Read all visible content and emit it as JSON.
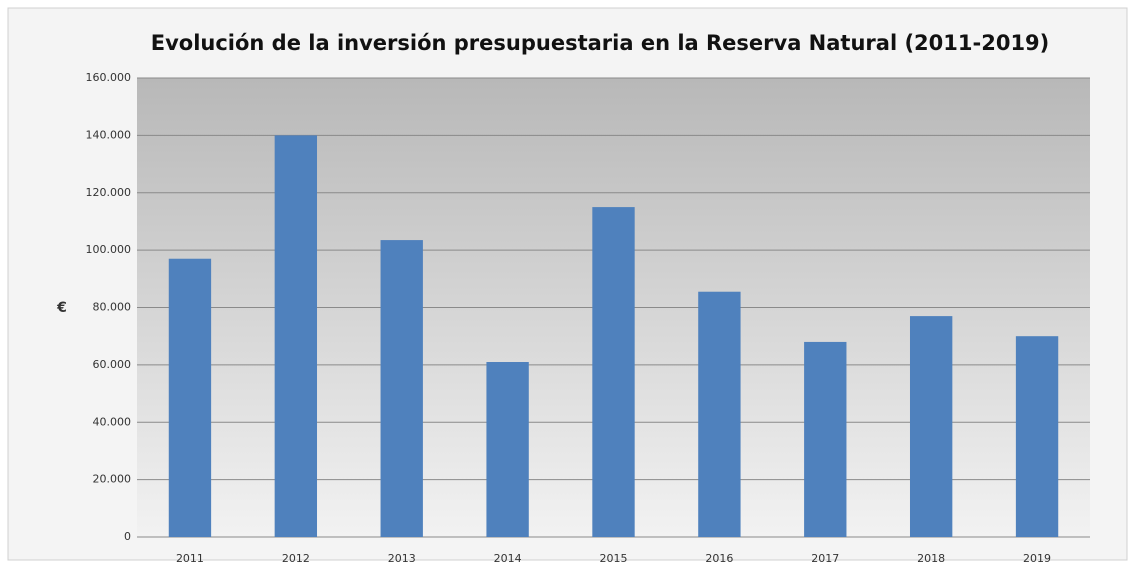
{
  "chart_data": {
    "type": "bar",
    "title": "Evolución de la inversión presupuestaria en la Reserva Natural (2011-2019)",
    "y_label": "€",
    "categories": [
      "2011",
      "2012",
      "2013",
      "2014",
      "2015",
      "2016",
      "2017",
      "2018",
      "2019"
    ],
    "values": [
      97000,
      140000,
      103500,
      61000,
      115000,
      85500,
      68000,
      77000,
      70000
    ],
    "color": "#4f81bd",
    "ylim": [
      0,
      160000
    ],
    "yticks": [
      0,
      {
        "value": 20000,
        "label": "20.000"
      },
      {
        "value": 40000,
        "label": "40.000"
      },
      {
        "value": 60000,
        "label": "60.000"
      },
      {
        "value": 80000,
        "label": "80.000"
      },
      {
        "value": 100000,
        "label": "100.000"
      },
      {
        "value": 120000,
        "label": "120.000"
      },
      {
        "value": 140000,
        "label": "140.000"
      },
      {
        "value": 160000,
        "label": "160.000"
      }
    ],
    "grid": true
  }
}
